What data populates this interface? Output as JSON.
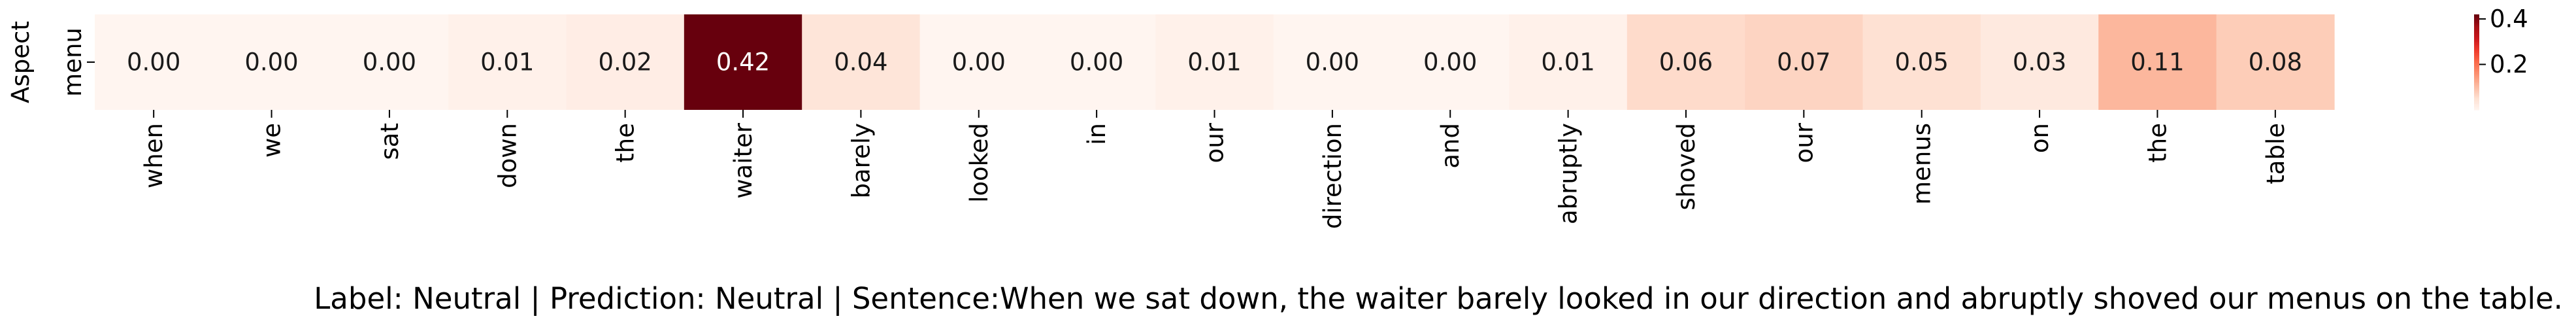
{
  "chart_data": {
    "type": "heatmap",
    "ylabel": "Aspect",
    "row_labels": [
      "menu"
    ],
    "categories": [
      "when",
      "we",
      "sat",
      "down",
      "the",
      "waiter",
      "barely",
      "looked",
      "in",
      "our",
      "direction",
      "and",
      "abruptly",
      "shoved",
      "our",
      "menus",
      "on",
      "the",
      "table"
    ],
    "values": [
      0.0,
      0.0,
      0.0,
      0.01,
      0.02,
      0.42,
      0.04,
      0.0,
      0.0,
      0.01,
      0.0,
      0.0,
      0.01,
      0.06,
      0.07,
      0.05,
      0.03,
      0.11,
      0.08
    ],
    "value_labels": [
      "0.00",
      "0.00",
      "0.00",
      "0.01",
      "0.02",
      "0.42",
      "0.04",
      "0.00",
      "0.00",
      "0.01",
      "0.00",
      "0.00",
      "0.01",
      "0.06",
      "0.07",
      "0.05",
      "0.03",
      "0.11",
      "0.08"
    ],
    "colorbar": {
      "colormap": "Reds",
      "range": [
        0.0,
        0.42
      ],
      "ticks": [
        0.2,
        0.4
      ],
      "tick_labels": [
        "0.2",
        "0.4"
      ]
    },
    "caption": "Label: Neutral | Prediction: Neutral | Sentence:When we sat down, the waiter barely looked in our direction and abruptly shoved our menus on the table."
  }
}
